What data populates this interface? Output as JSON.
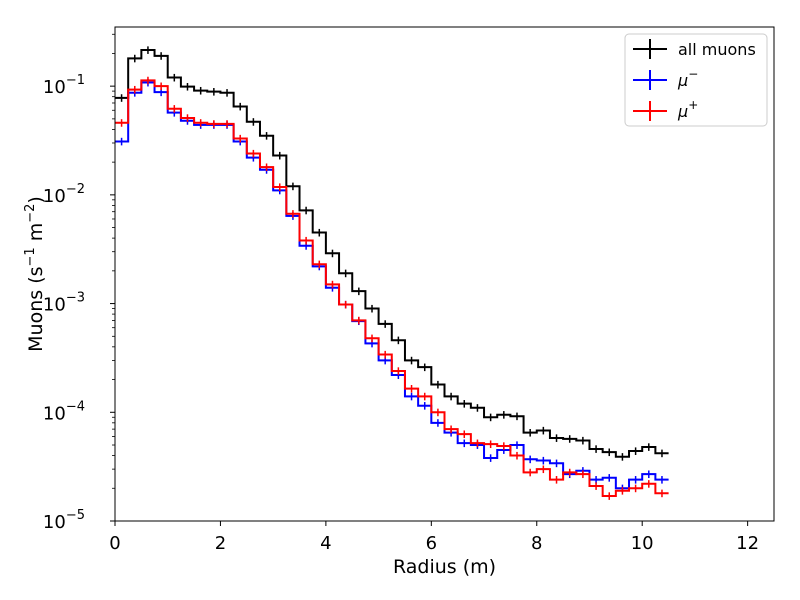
{
  "chart_data": {
    "type": "line",
    "title": "",
    "xlabel": "Radius (m)",
    "ylabel": "Muons (s",
    "ylabel_sup1": "−1",
    "ylabel_mid": " m",
    "ylabel_sup2": "−2",
    "ylabel_end": ")",
    "xlim": [
      0,
      12.5
    ],
    "ylim": [
      1e-05,
      0.35
    ],
    "yscale": "log",
    "xticks": [
      0,
      2,
      4,
      6,
      8,
      10,
      12
    ],
    "yticks": [
      {
        "value": 1e-05,
        "base": "10",
        "exp": "−5"
      },
      {
        "value": 0.0001,
        "base": "10",
        "exp": "−4"
      },
      {
        "value": 0.001,
        "base": "10",
        "exp": "−3"
      },
      {
        "value": 0.01,
        "base": "10",
        "exp": "−2"
      },
      {
        "value": 0.1,
        "base": "10",
        "exp": "−1"
      }
    ],
    "grid": false,
    "legend_position": "top-right",
    "bin_width": 0.25,
    "series": [
      {
        "name": "all muons",
        "color": "#000000",
        "values": [
          0.078,
          0.18,
          0.215,
          0.19,
          0.12,
          0.099,
          0.091,
          0.089,
          0.087,
          0.065,
          0.047,
          0.035,
          0.023,
          0.012,
          0.0072,
          0.0045,
          0.0029,
          0.0019,
          0.0013,
          0.0009,
          0.00065,
          0.00046,
          0.0003,
          0.00026,
          0.00018,
          0.00014,
          0.00012,
          0.00011,
          9e-05,
          9.5e-05,
          9.2e-05,
          6.5e-05,
          6.8e-05,
          5.8e-05,
          5.7e-05,
          5.5e-05,
          4.6e-05,
          4.3e-05,
          3.9e-05,
          4.4e-05,
          4.8e-05,
          4.2e-05
        ]
      },
      {
        "name": "μ",
        "name_sup": "−",
        "color": "#0000ff",
        "values": [
          0.031,
          0.087,
          0.108,
          0.088,
          0.057,
          0.048,
          0.044,
          0.044,
          0.044,
          0.031,
          0.022,
          0.017,
          0.011,
          0.0064,
          0.0034,
          0.0022,
          0.0014,
          0.00098,
          0.00069,
          0.00043,
          0.0003,
          0.00022,
          0.00014,
          0.000115,
          8e-05,
          6.5e-05,
          5.2e-05,
          5e-05,
          3.8e-05,
          4.5e-05,
          5e-05,
          3.7e-05,
          3.6e-05,
          3.4e-05,
          2.7e-05,
          2.9e-05,
          2.4e-05,
          2.5e-05,
          2e-05,
          2.4e-05,
          2.7e-05,
          2.4e-05
        ]
      },
      {
        "name": "μ",
        "name_sup": "+",
        "color": "#ff0000",
        "values": [
          0.046,
          0.093,
          0.113,
          0.1,
          0.062,
          0.051,
          0.046,
          0.045,
          0.045,
          0.033,
          0.024,
          0.018,
          0.0118,
          0.0067,
          0.0038,
          0.0023,
          0.0015,
          0.00098,
          0.0007,
          0.00048,
          0.00034,
          0.00024,
          0.000165,
          0.00014,
          0.0001,
          7e-05,
          6.3e-05,
          5.2e-05,
          5.1e-05,
          4.9e-05,
          4e-05,
          2.8e-05,
          3e-05,
          2.4e-05,
          2.8e-05,
          2.7e-05,
          2.1e-05,
          1.7e-05,
          1.9e-05,
          2e-05,
          2.2e-05,
          1.8e-05
        ]
      }
    ]
  }
}
